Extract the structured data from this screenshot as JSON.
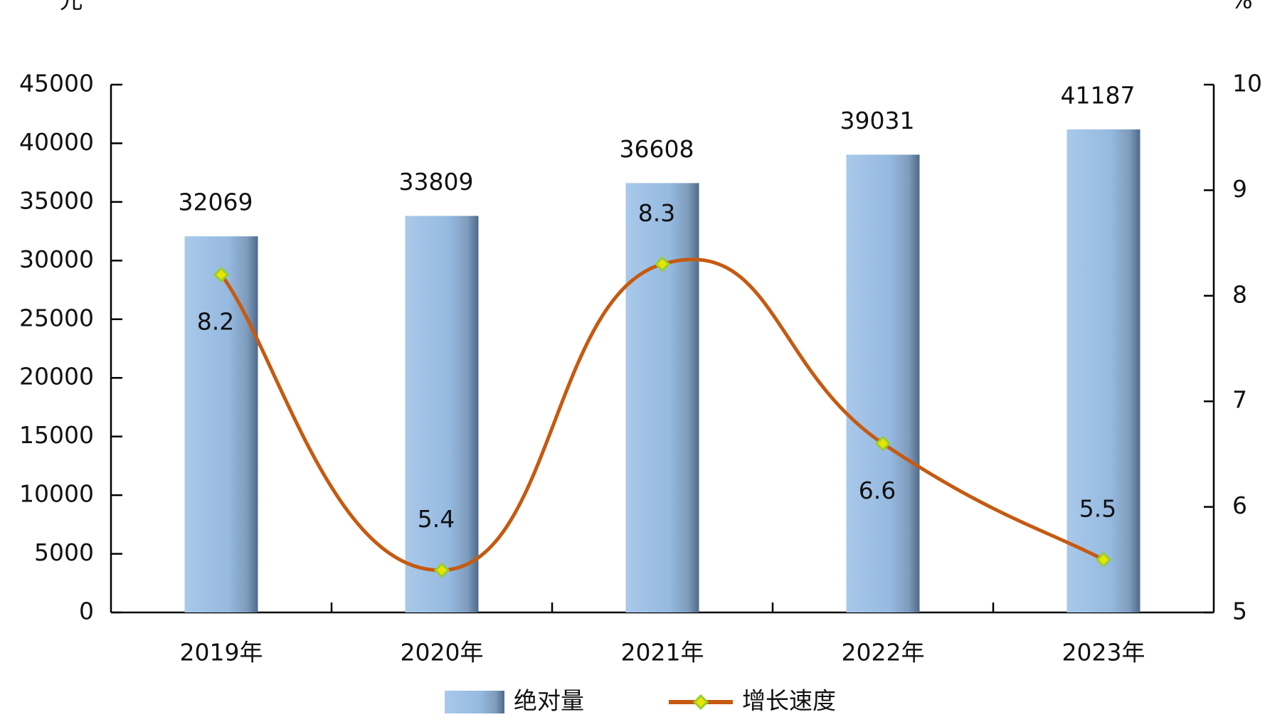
{
  "chart_data": {
    "type": "combo",
    "categories": [
      "2019年",
      "2020年",
      "2021年",
      "2022年",
      "2023年"
    ],
    "y_label": "元",
    "y2_label": "%",
    "series": [
      {
        "name": "绝对量",
        "type": "bar",
        "color": "#9dc3e6",
        "values": [
          32069,
          33809,
          36608,
          39031,
          41187
        ]
      },
      {
        "name": "增长速度",
        "type": "line",
        "axis": "y2",
        "color": "#c55a11",
        "marker_color": "#9acd32",
        "values": [
          8.2,
          5.4,
          8.3,
          6.6,
          5.5
        ]
      }
    ],
    "ylim": [
      0,
      45000
    ],
    "yticks": [
      0,
      5000,
      10000,
      15000,
      20000,
      25000,
      30000,
      35000,
      40000,
      45000
    ],
    "y2lim": [
      5,
      10
    ],
    "y2ticks": [
      5,
      6,
      7,
      8,
      9,
      10
    ],
    "data_labels": true
  }
}
